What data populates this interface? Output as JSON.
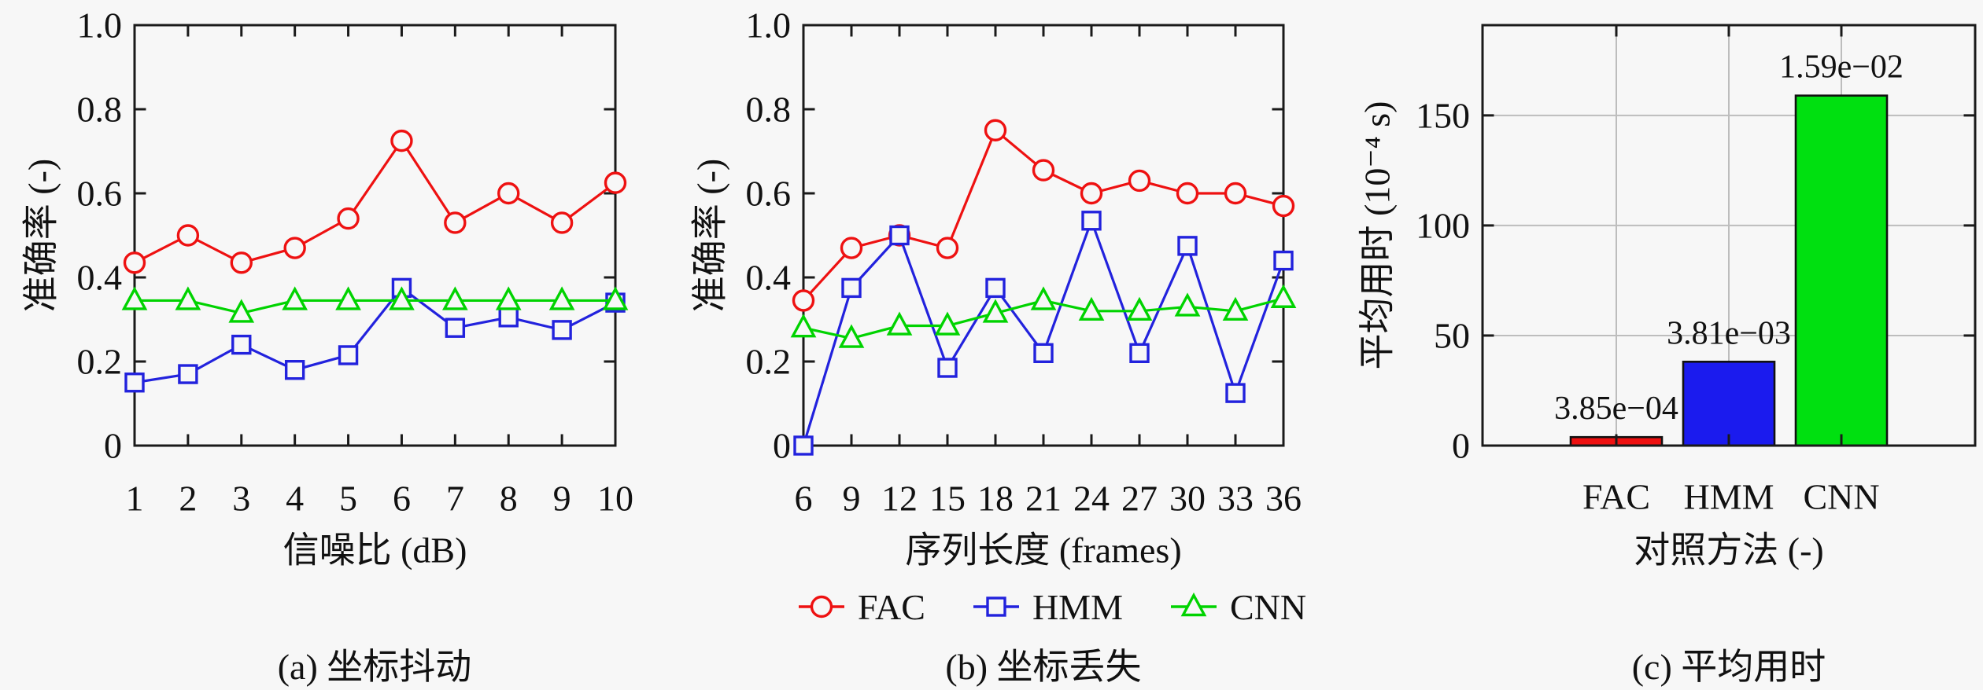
{
  "figure": {
    "background": "#f7f7f7",
    "axis_color": "#1a1a1a",
    "grid_color": "#bdbdbd",
    "text_color": "#111111"
  },
  "legend": {
    "items": [
      {
        "label": "FAC",
        "marker": "circle",
        "color": "#ee1111"
      },
      {
        "label": "HMM",
        "marker": "square",
        "color": "#2222dd"
      },
      {
        "label": "CNN",
        "marker": "triangle",
        "color": "#00d300"
      }
    ]
  },
  "chart_data": [
    {
      "id": "a",
      "type": "line",
      "title": "(a) 坐标抖动",
      "xlabel": "信噪比 (dB)",
      "ylabel": "准确率 (-)",
      "xlim": [
        1,
        10
      ],
      "ylim": [
        0,
        1
      ],
      "grid": false,
      "xticks": [
        1,
        2,
        3,
        4,
        5,
        6,
        7,
        8,
        9,
        10
      ],
      "xtick_labels": [
        "1",
        "2",
        "3",
        "4",
        "5",
        "6",
        "7",
        "8",
        "9",
        "10"
      ],
      "ytick_vals": [
        0,
        0.2,
        0.4,
        0.6,
        0.8,
        1.0
      ],
      "ytick_labels": [
        "0",
        "0.2",
        "0.4",
        "0.6",
        "0.8",
        "1.0"
      ],
      "x": [
        1,
        2,
        3,
        4,
        5,
        6,
        7,
        8,
        9,
        10
      ],
      "series": [
        {
          "name": "FAC",
          "color": "#ee1111",
          "marker": "circle",
          "values": [
            0.435,
            0.5,
            0.435,
            0.47,
            0.54,
            0.725,
            0.53,
            0.6,
            0.53,
            0.625
          ]
        },
        {
          "name": "HMM",
          "color": "#2222dd",
          "marker": "square",
          "values": [
            0.15,
            0.17,
            0.24,
            0.18,
            0.215,
            0.375,
            0.28,
            0.305,
            0.275,
            0.34
          ]
        },
        {
          "name": "CNN",
          "color": "#00d300",
          "marker": "triangle",
          "values": [
            0.345,
            0.345,
            0.315,
            0.345,
            0.345,
            0.345,
            0.345,
            0.345,
            0.345,
            0.345
          ]
        }
      ]
    },
    {
      "id": "b",
      "type": "line",
      "title": "(b) 坐标丢失",
      "xlabel": "序列长度 (frames)",
      "ylabel": "准确率 (-)",
      "xlim": [
        6,
        36
      ],
      "ylim": [
        0,
        1
      ],
      "grid": false,
      "xticks": [
        6,
        9,
        12,
        15,
        18,
        21,
        24,
        27,
        30,
        33,
        36
      ],
      "xtick_labels": [
        "6",
        "9",
        "12",
        "15",
        "18",
        "21",
        "24",
        "27",
        "30",
        "33",
        "36"
      ],
      "ytick_vals": [
        0,
        0.2,
        0.4,
        0.6,
        0.8,
        1.0
      ],
      "ytick_labels": [
        "0",
        "0.2",
        "0.4",
        "0.6",
        "0.8",
        "1.0"
      ],
      "x": [
        6,
        9,
        12,
        15,
        18,
        21,
        24,
        27,
        30,
        33,
        36
      ],
      "series": [
        {
          "name": "FAC",
          "color": "#ee1111",
          "marker": "circle",
          "values": [
            0.345,
            0.47,
            0.5,
            0.47,
            0.75,
            0.655,
            0.6,
            0.63,
            0.6,
            0.6,
            0.57
          ]
        },
        {
          "name": "HMM",
          "color": "#2222dd",
          "marker": "square",
          "values": [
            0.0,
            0.375,
            0.5,
            0.185,
            0.375,
            0.22,
            0.535,
            0.22,
            0.475,
            0.125,
            0.44
          ]
        },
        {
          "name": "CNN",
          "color": "#00d300",
          "marker": "triangle",
          "values": [
            0.28,
            0.255,
            0.285,
            0.285,
            0.315,
            0.345,
            0.32,
            0.32,
            0.33,
            0.32,
            0.35
          ]
        }
      ]
    },
    {
      "id": "c",
      "type": "bar",
      "title": "(c) 平均用时",
      "xlabel": "对照方法 (-)",
      "ylabel": "平均用时 (10⁻⁴ s)",
      "categories": [
        "FAC",
        "HMM",
        "CNN"
      ],
      "values": [
        3.85,
        38.1,
        159
      ],
      "value_labels": [
        "3.85e−04",
        "3.81e−03",
        "1.59e−02"
      ],
      "bar_colors": [
        "#ee1111",
        "#1b1bee",
        "#00e010"
      ],
      "ylim": [
        0,
        191
      ],
      "yticks": [
        0,
        50,
        100,
        150
      ],
      "ytick_labels": [
        "0",
        "50",
        "100",
        "150"
      ],
      "grid": true,
      "legend_position": "below-middle-chart"
    }
  ]
}
